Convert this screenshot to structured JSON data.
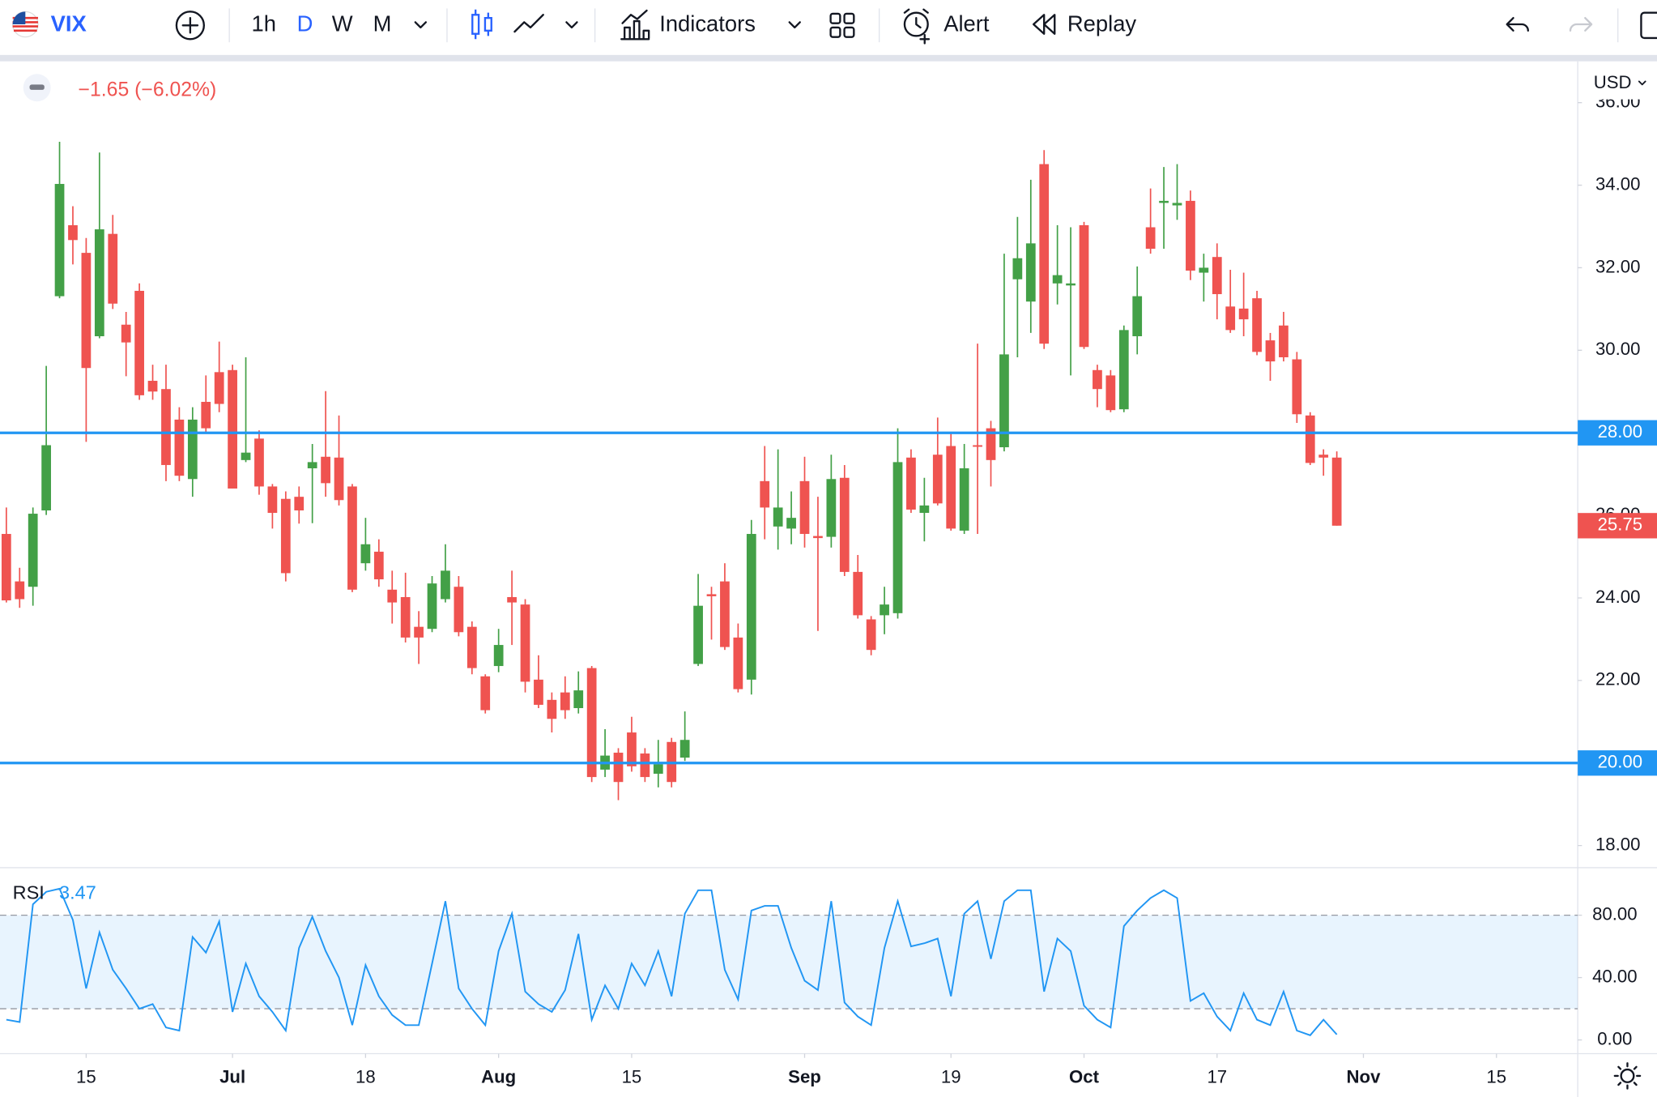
{
  "toolbar": {
    "symbol": "VIX",
    "intervals": [
      "1h",
      "D",
      "W",
      "M"
    ],
    "active_interval": 1,
    "indicators": "Indicators",
    "alert": "Alert",
    "replay": "Replay"
  },
  "chart_data": {
    "type": "candlestick",
    "currency": "USD",
    "change": "−1.65 (−6.02%)",
    "up_color": "#43a047",
    "down_color": "#ef5350",
    "open": [
      25.55,
      24.4,
      24.27,
      26.12,
      31.31,
      33.03,
      32.36,
      30.34,
      32.82,
      30.62,
      31.44,
      29.26,
      29.06,
      28.32,
      26.88,
      28.75,
      29.47,
      29.52,
      27.34,
      27.86,
      26.7,
      26.4,
      26.45,
      27.14,
      27.42,
      27.4,
      26.7,
      24.84,
      25.12,
      24.2,
      24.02,
      23.3,
      23.25,
      23.97,
      24.27,
      23.3,
      22.1,
      22.35,
      24.02,
      23.84,
      22.02,
      21.53,
      21.71,
      21.33,
      22.3,
      19.84,
      20.25,
      20.74,
      20.23,
      19.74,
      20.51,
      20.13,
      22.4,
      24.09,
      24.4,
      23.04,
      22.02,
      26.83,
      25.73,
      25.68,
      26.83,
      25.5,
      25.48,
      26.91,
      24.63,
      23.48,
      23.58,
      23.63,
      27.4,
      26.06,
      27.47,
      27.68,
      25.63,
      27.7,
      28.11,
      27.65,
      31.72,
      31.18,
      34.51,
      31.62,
      31.57,
      33.03,
      29.52,
      29.39,
      28.57,
      30.34,
      32.98,
      33.57,
      33.51,
      33.62,
      31.88,
      32.26,
      31.06,
      31.01,
      31.26,
      30.24,
      30.6,
      29.78,
      28.42,
      27.47,
      27.4
    ],
    "high": [
      26.19,
      24.73,
      26.19,
      29.62,
      35.05,
      33.49,
      32.72,
      34.79,
      33.28,
      30.93,
      31.62,
      29.65,
      29.65,
      28.62,
      28.62,
      29.39,
      30.21,
      29.65,
      29.83,
      28.06,
      26.76,
      26.58,
      26.7,
      27.73,
      29.01,
      28.42,
      26.76,
      25.94,
      25.42,
      24.66,
      24.61,
      23.68,
      24.53,
      25.3,
      24.53,
      23.43,
      22.15,
      23.25,
      24.66,
      23.97,
      22.61,
      21.71,
      22.1,
      22.22,
      22.35,
      20.82,
      20.36,
      21.12,
      20.36,
      20.56,
      20.61,
      21.25,
      24.58,
      24.27,
      24.84,
      23.38,
      25.89,
      27.68,
      27.6,
      26.58,
      27.42,
      26.45,
      27.47,
      27.22,
      25.04,
      23.56,
      24.27,
      28.11,
      27.6,
      26.91,
      28.37,
      27.98,
      27.73,
      30.16,
      28.29,
      32.34,
      33.23,
      34.13,
      34.85,
      33.03,
      32.98,
      33.11,
      29.65,
      29.52,
      30.6,
      32.03,
      33.92,
      34.44,
      34.51,
      33.87,
      32.34,
      32.59,
      31.95,
      31.88,
      31.44,
      30.42,
      30.93,
      29.96,
      28.5,
      27.6,
      27.55
    ],
    "low": [
      23.89,
      23.76,
      23.81,
      26.01,
      31.26,
      32.08,
      27.78,
      30.29,
      31.0,
      29.37,
      28.8,
      28.8,
      26.83,
      26.83,
      26.45,
      27.98,
      28.5,
      26.65,
      27.29,
      26.5,
      25.68,
      24.4,
      25.8,
      25.81,
      26.45,
      26.24,
      24.14,
      24.66,
      24.27,
      23.38,
      22.92,
      22.4,
      23.17,
      23.89,
      23.07,
      22.15,
      21.2,
      22.2,
      22.86,
      21.71,
      21.33,
      20.74,
      21.07,
      21.2,
      19.54,
      19.66,
      19.1,
      19.79,
      19.54,
      19.41,
      19.41,
      20.05,
      22.35,
      22.99,
      22.74,
      21.71,
      21.66,
      25.42,
      25.17,
      25.3,
      25.22,
      23.2,
      25.22,
      24.53,
      23.5,
      22.61,
      23.12,
      23.5,
      26.06,
      25.37,
      26.24,
      25.63,
      25.55,
      25.55,
      26.7,
      27.55,
      29.83,
      30.42,
      30.03,
      31.11,
      29.39,
      30.03,
      28.62,
      28.5,
      28.5,
      29.9,
      32.34,
      32.46,
      33.16,
      31.7,
      31.18,
      30.75,
      30.42,
      30.34,
      29.88,
      29.26,
      29.73,
      28.24,
      27.22,
      26.96,
      25.75
    ],
    "close": [
      23.94,
      23.97,
      26.04,
      27.7,
      34.03,
      32.67,
      29.57,
      32.93,
      31.13,
      30.19,
      28.91,
      29.0,
      27.22,
      26.96,
      28.32,
      28.11,
      28.7,
      26.65,
      27.52,
      26.7,
      26.06,
      24.6,
      26.12,
      27.29,
      26.78,
      26.37,
      24.2,
      25.3,
      24.45,
      23.89,
      23.04,
      23.04,
      24.35,
      24.66,
      23.17,
      22.3,
      21.28,
      22.86,
      23.89,
      21.97,
      21.41,
      21.07,
      21.28,
      21.76,
      19.66,
      20.18,
      19.54,
      19.92,
      19.66,
      19.97,
      19.54,
      20.56,
      23.81,
      24.04,
      22.81,
      21.79,
      25.55,
      26.19,
      26.19,
      25.94,
      25.55,
      25.45,
      26.88,
      24.63,
      23.58,
      22.74,
      23.84,
      27.29,
      26.14,
      26.24,
      26.29,
      25.68,
      27.14,
      27.68,
      27.34,
      29.9,
      32.23,
      32.59,
      30.16,
      31.82,
      31.62,
      30.08,
      29.06,
      28.55,
      30.49,
      31.31,
      32.46,
      33.62,
      33.57,
      31.93,
      32.0,
      31.36,
      30.49,
      30.75,
      29.96,
      29.73,
      29.83,
      28.45,
      27.27,
      27.4,
      25.75
    ],
    "ylim": [
      17.49,
      36.95
    ],
    "yticks": [
      {
        "value": 18,
        "label": "18.00"
      },
      {
        "value": 22,
        "label": "22.00"
      },
      {
        "value": 24,
        "label": "24.00"
      },
      {
        "value": 26,
        "label": "26.00"
      },
      {
        "value": 30,
        "label": "30.00"
      },
      {
        "value": 32,
        "label": "32.00"
      },
      {
        "value": 34,
        "label": "34.00"
      },
      {
        "value": 36,
        "label": "36.00"
      }
    ],
    "hlines": [
      {
        "value": 28,
        "label": "28.00"
      },
      {
        "value": 20,
        "label": "20.00"
      }
    ],
    "hline_color": "#2196f3",
    "xticks": [
      {
        "value": 6,
        "label": "15"
      },
      {
        "value": 17,
        "label": "Jul"
      },
      {
        "value": 27,
        "label": "18"
      },
      {
        "value": 37,
        "label": "Aug"
      },
      {
        "value": 47,
        "label": "15"
      },
      {
        "value": 60,
        "label": "Sep"
      },
      {
        "value": 71,
        "label": "19"
      },
      {
        "value": 81,
        "label": "Oct"
      },
      {
        "value": 91,
        "label": "17"
      },
      {
        "value": 102,
        "label": "Nov"
      },
      {
        "value": 112,
        "label": "15"
      }
    ],
    "rsi": {
      "name": "RSI",
      "color": "#2196f3",
      "value_label": "3.47",
      "values": [
        13,
        11.5,
        87,
        95,
        97,
        77,
        33,
        69,
        45,
        33,
        20,
        23,
        8,
        6,
        66,
        56,
        76,
        18,
        49,
        28,
        18,
        6,
        59,
        79,
        57,
        40,
        9.5,
        48,
        28,
        16,
        9.5,
        9.5,
        49,
        89,
        33,
        20,
        9.5,
        57,
        81,
        31,
        23,
        18,
        32,
        68,
        13,
        35,
        20,
        49,
        35,
        57,
        28,
        81,
        96,
        96,
        45,
        26,
        83,
        86,
        86,
        59,
        38,
        32,
        89,
        24,
        15,
        9.5,
        59,
        89,
        60,
        62,
        65,
        28,
        81,
        89,
        52,
        89,
        96,
        96,
        31,
        65,
        57,
        22,
        13,
        8,
        73,
        83,
        91,
        96,
        91,
        25,
        30,
        15,
        6,
        30,
        13,
        9.5,
        31,
        6,
        3,
        13,
        3.47
      ],
      "ylim": [
        -8.8,
        109.8
      ],
      "band": [
        20,
        80
      ],
      "yticks": [
        {
          "value": 0,
          "label": "0.00"
        },
        {
          "value": 40,
          "label": "40.00"
        },
        {
          "value": 80,
          "label": "80.00"
        }
      ]
    }
  }
}
